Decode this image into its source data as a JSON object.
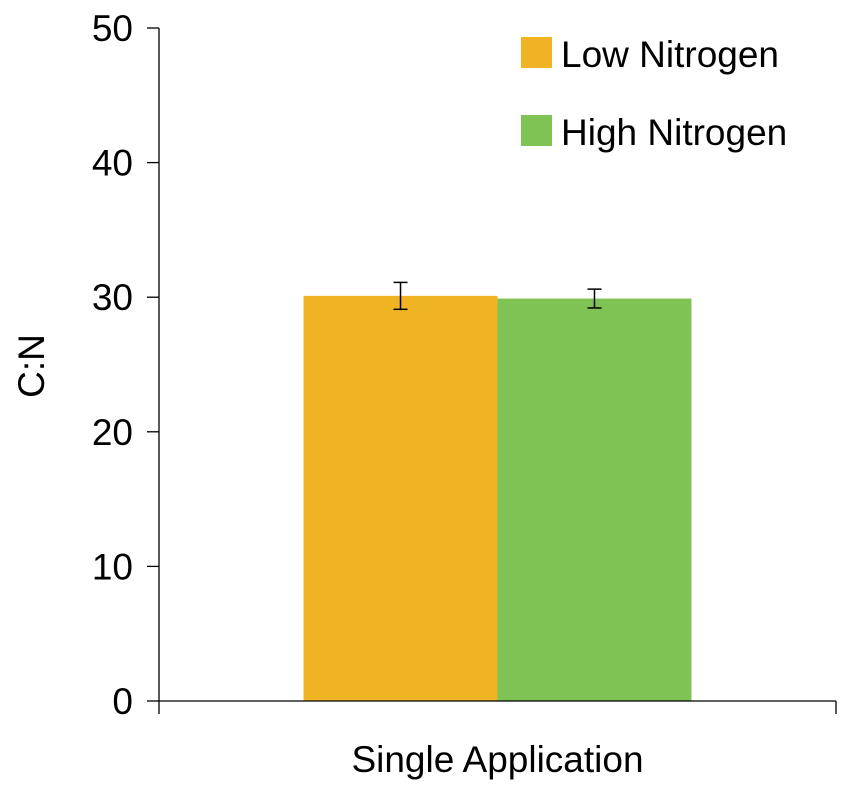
{
  "chart_data": {
    "type": "bar",
    "title": "",
    "xlabel": "",
    "ylabel": "C:N",
    "categories": [
      "Single Application"
    ],
    "series": [
      {
        "name": "Low Nitrogen",
        "values": [
          30.1
        ],
        "error": [
          1.0
        ],
        "color": "#F0B323"
      },
      {
        "name": "High Nitrogen",
        "values": [
          29.9
        ],
        "error": [
          0.7
        ],
        "color": "#7FC355"
      }
    ],
    "ylim": [
      0,
      50
    ],
    "yticks": [
      0,
      10,
      20,
      30,
      40,
      50
    ],
    "grid": false,
    "legend_position": "top-right"
  }
}
